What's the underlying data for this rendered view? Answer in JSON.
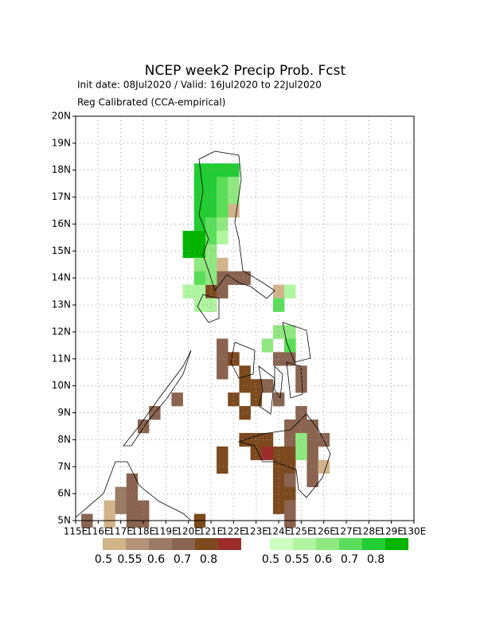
{
  "title": "NCEP week2 Precip Prob. Fcst",
  "subtitle": "Init date: 08Jul2020 / Valid: 16Jul2020 to 22Jul2020",
  "method": "Reg Calibrated (CCA-empirical)",
  "xlim": [
    115,
    130
  ],
  "ylim": [
    5,
    20
  ],
  "xticks": [
    {
      "value": 115,
      "label": "115E"
    },
    {
      "value": 116,
      "label": "116E"
    },
    {
      "value": 117,
      "label": "117E"
    },
    {
      "value": 118,
      "label": "118E"
    },
    {
      "value": 119,
      "label": "119E"
    },
    {
      "value": 120,
      "label": "120E"
    },
    {
      "value": 121,
      "label": "121E"
    },
    {
      "value": 122,
      "label": "122E"
    },
    {
      "value": 123,
      "label": "123E"
    },
    {
      "value": 124,
      "label": "124E"
    },
    {
      "value": 125,
      "label": "125E"
    },
    {
      "value": 126,
      "label": "126E"
    },
    {
      "value": 127,
      "label": "127E"
    },
    {
      "value": 128,
      "label": "128E"
    },
    {
      "value": 129,
      "label": "129E"
    },
    {
      "value": 130,
      "label": "130E"
    }
  ],
  "yticks": [
    {
      "value": 5,
      "label": "5N"
    },
    {
      "value": 6,
      "label": "6N"
    },
    {
      "value": 7,
      "label": "7N"
    },
    {
      "value": 8,
      "label": "8N"
    },
    {
      "value": 9,
      "label": "9N"
    },
    {
      "value": 10,
      "label": "10N"
    },
    {
      "value": 11,
      "label": "11N"
    },
    {
      "value": 12,
      "label": "12N"
    },
    {
      "value": 13,
      "label": "13N"
    },
    {
      "value": 14,
      "label": "14N"
    },
    {
      "value": 15,
      "label": "15N"
    },
    {
      "value": 16,
      "label": "16N"
    },
    {
      "value": 17,
      "label": "17N"
    },
    {
      "value": 18,
      "label": "18N"
    },
    {
      "value": 19,
      "label": "19N"
    },
    {
      "value": 20,
      "label": "20N"
    }
  ],
  "grid": true,
  "levels": [
    0.5,
    0.55,
    0.6,
    0.7,
    0.8
  ],
  "below_colors": [
    "#d2b48c",
    "#b4937a",
    "#9b7b65",
    "#8a6450",
    "#7c4a1e",
    "#9c2c2c"
  ],
  "above_colors": [
    "#ccffc0",
    "#b0f5a0",
    "#90e880",
    "#5ade5a",
    "#22cc33",
    "#00b400"
  ],
  "cell_size": 0.5,
  "above_cells": [
    [
      120.25,
      18.25,
      0.7
    ],
    [
      120.75,
      18.25,
      0.7
    ],
    [
      121.25,
      18.25,
      0.7
    ],
    [
      121.75,
      18.25,
      0.7
    ],
    [
      120.25,
      17.75,
      0.7
    ],
    [
      120.75,
      17.75,
      0.7
    ],
    [
      121.25,
      17.75,
      0.6
    ],
    [
      121.75,
      17.75,
      0.55
    ],
    [
      120.25,
      17.25,
      0.7
    ],
    [
      120.75,
      17.25,
      0.7
    ],
    [
      121.25,
      17.25,
      0.6
    ],
    [
      121.75,
      17.25,
      0.55
    ],
    [
      120.25,
      16.75,
      0.7
    ],
    [
      120.75,
      16.75,
      0.7
    ],
    [
      121.25,
      16.75,
      0.6
    ],
    [
      120.25,
      16.25,
      0.7
    ],
    [
      120.75,
      16.25,
      0.6
    ],
    [
      121.25,
      16.25,
      0.55
    ],
    [
      119.75,
      15.75,
      0.8
    ],
    [
      120.25,
      15.75,
      0.8
    ],
    [
      120.75,
      15.75,
      0.6
    ],
    [
      121.25,
      15.75,
      0.5
    ],
    [
      119.75,
      15.25,
      0.8
    ],
    [
      120.25,
      15.25,
      0.8
    ],
    [
      120.75,
      15.25,
      0.55
    ],
    [
      120.25,
      14.75,
      0.55
    ],
    [
      120.75,
      14.75,
      0.55
    ],
    [
      120.25,
      14.25,
      0.6
    ],
    [
      120.75,
      14.25,
      0.55
    ],
    [
      119.75,
      13.75,
      0.5
    ],
    [
      120.25,
      13.75,
      0.5
    ],
    [
      124.25,
      13.75,
      0.5
    ],
    [
      120.25,
      13.25,
      0.5
    ],
    [
      120.75,
      13.25,
      0.5
    ],
    [
      123.75,
      13.25,
      0.6
    ],
    [
      123.75,
      12.25,
      0.55
    ],
    [
      124.25,
      12.25,
      0.55
    ],
    [
      123.25,
      11.75,
      0.55
    ],
    [
      124.25,
      11.75,
      0.6
    ],
    [
      124.75,
      8.25,
      0.55
    ],
    [
      124.75,
      7.75,
      0.55
    ]
  ],
  "below_cells": [
    [
      121.75,
      16.75,
      0.45
    ],
    [
      121.25,
      14.75,
      0.45
    ],
    [
      121.25,
      14.25,
      0.6
    ],
    [
      121.75,
      14.25,
      0.6
    ],
    [
      122.25,
      14.25,
      0.6
    ],
    [
      120.75,
      13.75,
      0.7
    ],
    [
      121.25,
      13.75,
      0.6
    ],
    [
      123.75,
      13.75,
      0.45
    ],
    [
      120.75,
      13.25,
      0.6
    ],
    [
      121.25,
      11.75,
      0.6
    ],
    [
      124.25,
      11.75,
      0.6
    ],
    [
      121.25,
      11.25,
      0.6
    ],
    [
      121.75,
      11.25,
      0.7
    ],
    [
      123.75,
      11.25,
      0.6
    ],
    [
      124.25,
      11.25,
      0.6
    ],
    [
      121.25,
      10.75,
      0.6
    ],
    [
      122.25,
      10.75,
      0.7
    ],
    [
      124.75,
      10.75,
      0.6
    ],
    [
      122.25,
      10.25,
      0.7
    ],
    [
      122.75,
      10.25,
      0.7
    ],
    [
      123.25,
      10.25,
      0.6
    ],
    [
      124.75,
      10.25,
      0.6
    ],
    [
      119.25,
      9.75,
      0.6
    ],
    [
      121.75,
      9.75,
      0.7
    ],
    [
      122.75,
      9.75,
      0.7
    ],
    [
      123.75,
      9.75,
      0.6
    ],
    [
      122.25,
      9.25,
      0.7
    ],
    [
      118.25,
      9.25,
      0.6
    ],
    [
      124.75,
      9.25,
      0.6
    ],
    [
      117.75,
      8.75,
      0.6
    ],
    [
      124.25,
      8.75,
      0.6
    ],
    [
      124.75,
      8.75,
      0.6
    ],
    [
      125.25,
      8.75,
      0.6
    ],
    [
      122.25,
      8.25,
      0.7
    ],
    [
      122.75,
      8.25,
      0.7
    ],
    [
      123.25,
      8.25,
      0.7
    ],
    [
      124.25,
      8.25,
      0.6
    ],
    [
      125.25,
      8.25,
      0.6
    ],
    [
      125.75,
      8.25,
      0.6
    ],
    [
      121.25,
      7.75,
      0.7
    ],
    [
      122.75,
      7.75,
      0.7
    ],
    [
      123.25,
      7.75,
      0.8
    ],
    [
      123.75,
      7.75,
      0.7
    ],
    [
      124.25,
      7.75,
      0.7
    ],
    [
      125.25,
      7.75,
      0.6
    ],
    [
      121.25,
      7.25,
      0.7
    ],
    [
      123.75,
      7.25,
      0.7
    ],
    [
      124.25,
      7.25,
      0.7
    ],
    [
      125.25,
      7.25,
      0.6
    ],
    [
      125.75,
      7.25,
      0.45
    ],
    [
      117.25,
      6.75,
      0.6
    ],
    [
      123.75,
      6.75,
      0.7
    ],
    [
      124.25,
      6.75,
      0.6
    ],
    [
      125.25,
      6.75,
      0.6
    ],
    [
      116.75,
      6.25,
      0.55
    ],
    [
      117.25,
      6.25,
      0.6
    ],
    [
      123.75,
      6.25,
      0.7
    ],
    [
      124.25,
      6.25,
      0.7
    ],
    [
      116.25,
      5.75,
      0.45
    ],
    [
      116.75,
      5.75,
      0.55
    ],
    [
      117.25,
      5.75,
      0.6
    ],
    [
      117.75,
      5.75,
      0.6
    ],
    [
      123.75,
      5.75,
      0.7
    ],
    [
      124.25,
      5.75,
      0.6
    ],
    [
      116.25,
      5.25,
      0.45
    ],
    [
      117.25,
      5.25,
      0.6
    ],
    [
      117.75,
      5.25,
      0.6
    ],
    [
      124.25,
      5.25,
      0.6
    ],
    [
      120.25,
      5.25,
      0.7
    ],
    [
      115.25,
      5.25,
      0.6
    ]
  ]
}
